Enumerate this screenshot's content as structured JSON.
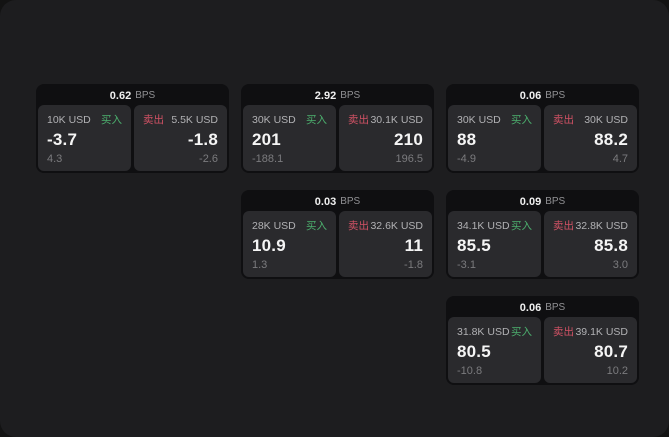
{
  "labels": {
    "bps": "BPS",
    "buy": "买入",
    "sell": "卖出"
  },
  "colors": {
    "window_bg": "#1d1d1f",
    "card_bg": "#0f0f11",
    "panel_bg": "#2a2a2d",
    "buy_green": "#4caf6e",
    "sell_red": "#d15265",
    "price_text": "#f5f5f5",
    "muted_text": "#7b7b7e"
  },
  "cards": [
    {
      "bps": "0.62",
      "buy": {
        "size": "10K USD",
        "price": "-3.7",
        "delta": "4.3"
      },
      "sell": {
        "size": "5.5K USD",
        "price": "-1.8",
        "delta": "-2.6"
      }
    },
    {
      "bps": "2.92",
      "buy": {
        "size": "30K USD",
        "price": "201",
        "delta": "-188.1"
      },
      "sell": {
        "size": "30.1K USD",
        "price": "210",
        "delta": "196.5"
      }
    },
    {
      "bps": "0.06",
      "buy": {
        "size": "30K USD",
        "price": "88",
        "delta": "-4.9"
      },
      "sell": {
        "size": "30K USD",
        "price": "88.2",
        "delta": "4.7"
      }
    },
    {
      "bps": "0.03",
      "buy": {
        "size": "28K USD",
        "price": "10.9",
        "delta": "1.3"
      },
      "sell": {
        "size": "32.6K USD",
        "price": "11",
        "delta": "-1.8"
      }
    },
    {
      "bps": "0.09",
      "buy": {
        "size": "34.1K USD",
        "price": "85.5",
        "delta": "-3.1"
      },
      "sell": {
        "size": "32.8K USD",
        "price": "85.8",
        "delta": "3.0"
      }
    },
    {
      "bps": "0.06",
      "buy": {
        "size": "31.8K USD",
        "price": "80.5",
        "delta": "-10.8"
      },
      "sell": {
        "size": "39.1K USD",
        "price": "80.7",
        "delta": "10.2"
      }
    }
  ]
}
